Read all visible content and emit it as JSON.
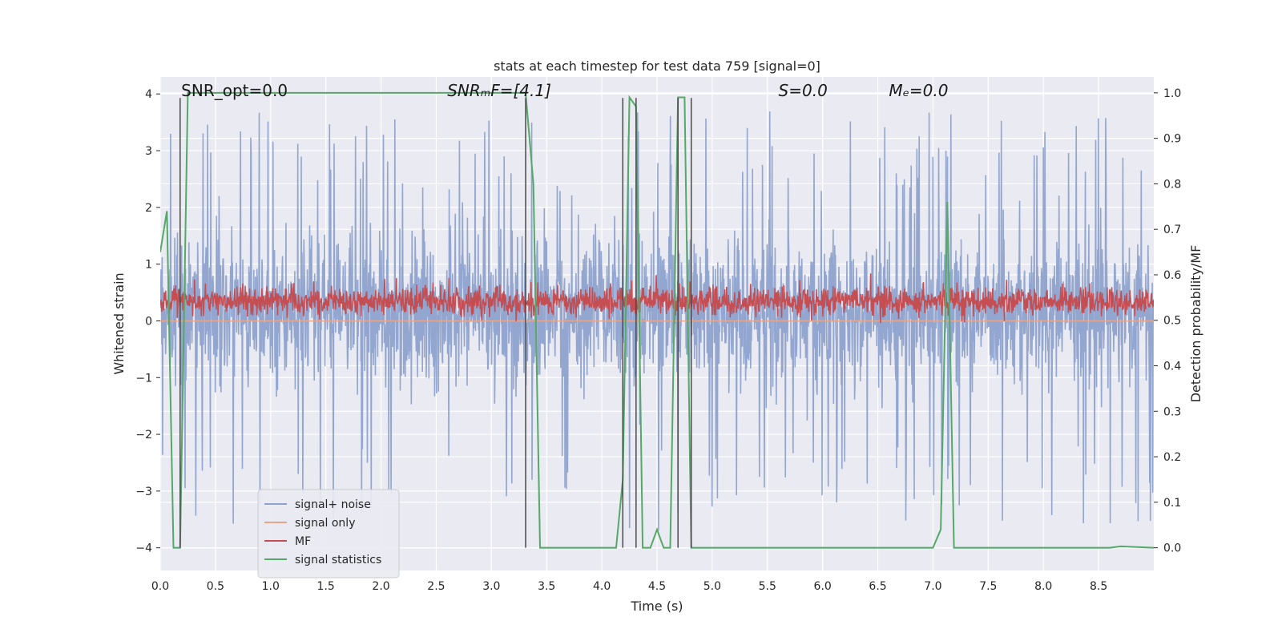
{
  "chart_data": {
    "type": "line",
    "title": "stats at each timestep for test data 759 [signal=0]",
    "xlabel": "Time (s)",
    "ylabel": "Whitened strain",
    "ylabel_right": "Detection probability/MF",
    "xlim": [
      0.0,
      9.0
    ],
    "ylim": [
      -4.4,
      4.3
    ],
    "ylim_right": [
      -0.05,
      1.035
    ],
    "xticks": [
      0.0,
      0.5,
      1.0,
      1.5,
      2.0,
      2.5,
      3.0,
      3.5,
      4.0,
      4.5,
      5.0,
      5.5,
      6.0,
      6.5,
      7.0,
      7.5,
      8.0,
      8.5
    ],
    "xtick_labels": [
      "0.0",
      "0.5",
      "1.0",
      "1.5",
      "2.0",
      "2.5",
      "3.0",
      "3.5",
      "4.0",
      "4.5",
      "5.0",
      "5.5",
      "6.0",
      "6.5",
      "7.0",
      "7.5",
      "8.0",
      "8.5"
    ],
    "yticks": [
      -4,
      -3,
      -2,
      -1,
      0,
      1,
      2,
      3,
      4
    ],
    "ytick_labels": [
      "−4",
      "−3",
      "−2",
      "−1",
      "0",
      "1",
      "2",
      "3",
      "4"
    ],
    "yticks_right": [
      0.0,
      0.1,
      0.2,
      0.3,
      0.4,
      0.5,
      0.6,
      0.7,
      0.8,
      0.9,
      1.0
    ],
    "ytick_labels_right": [
      "0.0",
      "0.1",
      "0.2",
      "0.3",
      "0.4",
      "0.5",
      "0.6",
      "0.7",
      "0.8",
      "0.9",
      "1.0"
    ],
    "annotations": [
      {
        "text": "SNR_opt=0.0",
        "x": 0.19,
        "y": 4.1
      },
      {
        "text": "SNRₘF=[4.1]",
        "x": 2.6,
        "y": 4.1
      },
      {
        "text": "S=0.0",
        "x": 5.6,
        "y": 4.1
      },
      {
        "text": "Mₑ=0.0",
        "x": 6.6,
        "y": 4.1
      }
    ],
    "legend": {
      "location": "lower-left",
      "entries": [
        {
          "label": "signal+ noise",
          "color": "#8da2cc"
        },
        {
          "label": "signal only",
          "color": "#e8a58a"
        },
        {
          "label": "MF",
          "color": "#c44e52"
        },
        {
          "label": "signal statistics",
          "color": "#55a868"
        }
      ]
    },
    "vlines": [
      0.18,
      3.31,
      4.19,
      4.31,
      4.69,
      4.81
    ],
    "vline_range": [
      -4.0,
      3.93
    ],
    "series": [
      {
        "name": "signal+ noise",
        "axis": "left",
        "color": "#8da2cc",
        "description": "dense noise trace sampled over 0-9 s",
        "envelope": {
          "typical_min": -1.9,
          "typical_max": 2.3,
          "extreme_min": -4.0,
          "extreme_max": 3.8
        }
      },
      {
        "name": "signal only",
        "axis": "left",
        "color": "#e8a58a",
        "x": [
          0.0,
          9.0
        ],
        "y": [
          0.0,
          0.0
        ]
      },
      {
        "name": "MF",
        "axis": "left",
        "color": "#c44e52",
        "description": "dense matched-filter trace",
        "envelope": {
          "typical_min": 0.1,
          "typical_max": 0.6,
          "extreme_min": -0.05,
          "extreme_max": 0.85
        }
      },
      {
        "name": "signal statistics",
        "axis": "right",
        "color": "#55a868",
        "x": [
          0.0,
          0.06,
          0.12,
          0.18,
          0.25,
          0.3,
          3.2,
          3.31,
          3.38,
          3.44,
          4.0,
          4.13,
          4.19,
          4.25,
          4.31,
          4.37,
          4.44,
          4.5,
          4.56,
          4.62,
          4.69,
          4.75,
          4.81,
          4.87,
          6.95,
          7.0,
          7.07,
          7.13,
          7.19,
          7.25,
          8.6,
          8.7,
          9.0
        ],
        "y": [
          0.65,
          0.74,
          0.0,
          0.0,
          1.0,
          1.0,
          1.0,
          1.0,
          0.8,
          0.0,
          0.0,
          0.0,
          0.15,
          0.99,
          0.97,
          0.0,
          0.0,
          0.04,
          0.0,
          0.0,
          0.99,
          0.99,
          0.0,
          0.0,
          0.0,
          0.0,
          0.04,
          0.76,
          0.0,
          0.0,
          0.0,
          0.003,
          0.0
        ]
      }
    ]
  }
}
